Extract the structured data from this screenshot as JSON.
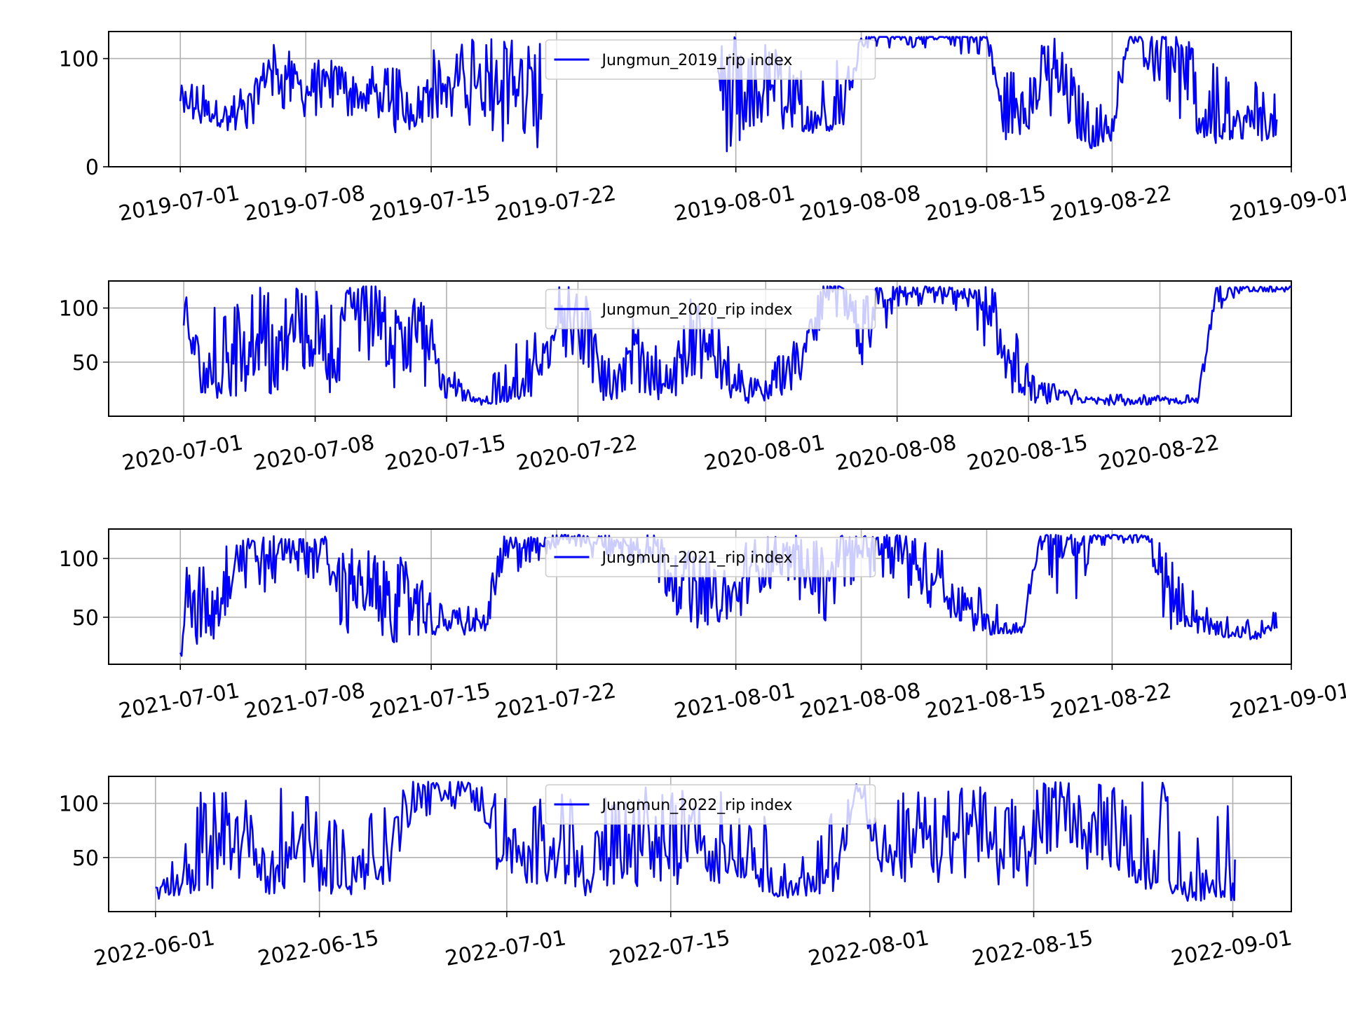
{
  "figure": {
    "background": "#ffffff"
  },
  "chart_data": [
    {
      "type": "line",
      "x_type": "date",
      "xlim": [
        "2019-06-27",
        "2019-09-01"
      ],
      "ylim": [
        0,
        125
      ],
      "yticks": [
        0,
        100
      ],
      "xticks": [
        "2019-07-01",
        "2019-07-08",
        "2019-07-15",
        "2019-07-22",
        "2019-08-01",
        "2019-08-08",
        "2019-08-15",
        "2019-08-22",
        "2019-09-01"
      ],
      "grid": true,
      "legend": "upper center",
      "series": [
        {
          "name": "Jungmun_2019_rip index",
          "color": "#0000ff",
          "x": [
            "2019-07-01",
            "2019-07-02",
            "2019-07-03",
            "2019-07-04",
            "2019-07-05",
            "2019-07-06",
            "2019-07-07",
            "2019-07-08",
            "2019-07-09",
            "2019-07-10",
            "2019-07-11",
            "2019-07-12",
            "2019-07-13",
            "2019-07-14",
            "2019-07-15",
            "2019-07-16",
            "2019-07-17",
            "2019-07-18",
            "2019-07-19",
            "2019-07-20",
            "2019-07-21",
            "2019-07-31",
            "2019-08-01",
            "2019-08-02",
            "2019-08-03",
            "2019-08-04",
            "2019-08-05",
            "2019-08-06",
            "2019-08-07",
            "2019-08-08",
            "2019-08-09",
            "2019-08-10",
            "2019-08-11",
            "2019-08-12",
            "2019-08-13",
            "2019-08-14",
            "2019-08-15",
            "2019-08-16",
            "2019-08-17",
            "2019-08-18",
            "2019-08-19",
            "2019-08-20",
            "2019-08-21",
            "2019-08-22",
            "2019-08-23",
            "2019-08-24",
            "2019-08-25",
            "2019-08-26",
            "2019-08-27",
            "2019-08-28",
            "2019-08-29",
            "2019-08-30",
            "2019-08-31"
          ],
          "y": [
            65,
            55,
            50,
            45,
            60,
            95,
            85,
            70,
            75,
            80,
            65,
            70,
            60,
            55,
            75,
            70,
            85,
            70,
            90,
            80,
            60,
            95,
            30,
            60,
            80,
            55,
            45,
            45,
            65,
            120,
            120,
            120,
            120,
            120,
            120,
            120,
            120,
            40,
            55,
            75,
            85,
            45,
            30,
            40,
            120,
            120,
            120,
            90,
            50,
            45,
            40,
            45,
            40
          ],
          "range_low": [
            45,
            40,
            30,
            30,
            35,
            60,
            50,
            40,
            45,
            50,
            40,
            45,
            30,
            35,
            45,
            40,
            40,
            30,
            20,
            15,
            15,
            5,
            10,
            30,
            40,
            30,
            30,
            30,
            35,
            110,
            110,
            110,
            110,
            110,
            110,
            100,
            100,
            25,
            30,
            40,
            50,
            25,
            15,
            20,
            100,
            90,
            60,
            40,
            20,
            20,
            20,
            20,
            25
          ],
          "range_high": [
            85,
            80,
            75,
            70,
            85,
            120,
            110,
            95,
            100,
            110,
            95,
            100,
            95,
            90,
            110,
            100,
            120,
            120,
            120,
            120,
            120,
            120,
            120,
            110,
            115,
            95,
            85,
            80,
            110,
            120,
            120,
            120,
            120,
            120,
            120,
            120,
            120,
            90,
            100,
            115,
            120,
            80,
            60,
            70,
            120,
            120,
            120,
            120,
            120,
            90,
            75,
            80,
            70
          ]
        }
      ]
    },
    {
      "type": "line",
      "x_type": "date",
      "xlim": [
        "2020-06-27",
        "2020-08-29"
      ],
      "ylim": [
        0,
        125
      ],
      "yticks": [
        50,
        100
      ],
      "xticks": [
        "2020-07-01",
        "2020-07-08",
        "2020-07-15",
        "2020-07-22",
        "2020-08-01",
        "2020-08-08",
        "2020-08-15",
        "2020-08-22"
      ],
      "grid": true,
      "legend": "upper center",
      "series": [
        {
          "name": "Jungmun_2020_rip index",
          "color": "#0000ff",
          "x": [
            "2020-07-01",
            "2020-07-02",
            "2020-07-03",
            "2020-07-04",
            "2020-07-05",
            "2020-07-06",
            "2020-07-07",
            "2020-07-08",
            "2020-07-09",
            "2020-07-10",
            "2020-07-11",
            "2020-07-12",
            "2020-07-13",
            "2020-07-14",
            "2020-07-15",
            "2020-07-16",
            "2020-07-17",
            "2020-07-18",
            "2020-07-19",
            "2020-07-20",
            "2020-07-21",
            "2020-07-22",
            "2020-07-23",
            "2020-07-24",
            "2020-07-25",
            "2020-07-26",
            "2020-07-27",
            "2020-07-28",
            "2020-07-29",
            "2020-07-30",
            "2020-07-31",
            "2020-08-01",
            "2020-08-02",
            "2020-08-03",
            "2020-08-04",
            "2020-08-05",
            "2020-08-06",
            "2020-08-07",
            "2020-08-08",
            "2020-08-09",
            "2020-08-10",
            "2020-08-11",
            "2020-08-12",
            "2020-08-13",
            "2020-08-14",
            "2020-08-15",
            "2020-08-16",
            "2020-08-17",
            "2020-08-18",
            "2020-08-19",
            "2020-08-20",
            "2020-08-21",
            "2020-08-22",
            "2020-08-23",
            "2020-08-24",
            "2020-08-25",
            "2020-08-26",
            "2020-08-27",
            "2020-08-28",
            "2020-08-29"
          ],
          "y": [
            90,
            40,
            35,
            60,
            85,
            50,
            95,
            80,
            60,
            105,
            110,
            70,
            95,
            65,
            30,
            20,
            15,
            18,
            30,
            45,
            100,
            90,
            50,
            30,
            60,
            40,
            35,
            70,
            60,
            40,
            25,
            20,
            40,
            55,
            115,
            115,
            65,
            110,
            115,
            115,
            115,
            115,
            110,
            90,
            50,
            25,
            20,
            18,
            15,
            15,
            15,
            15,
            15,
            15,
            15,
            110,
            118,
            118,
            118,
            118
          ],
          "range_low": [
            45,
            20,
            15,
            20,
            25,
            15,
            30,
            30,
            20,
            40,
            45,
            20,
            35,
            25,
            15,
            12,
            10,
            12,
            15,
            20,
            60,
            40,
            15,
            12,
            25,
            15,
            15,
            25,
            25,
            18,
            12,
            12,
            20,
            30,
            80,
            90,
            30,
            70,
            95,
            100,
            100,
            100,
            80,
            45,
            20,
            12,
            10,
            10,
            10,
            10,
            10,
            10,
            10,
            10,
            10,
            60,
            110,
            115,
            115,
            115
          ],
          "range_high": [
            120,
            110,
            95,
            110,
            120,
            110,
            120,
            120,
            115,
            120,
            120,
            120,
            120,
            110,
            60,
            25,
            30,
            50,
            75,
            90,
            120,
            120,
            100,
            55,
            95,
            70,
            60,
            110,
            100,
            65,
            40,
            35,
            65,
            80,
            120,
            120,
            110,
            120,
            120,
            120,
            120,
            120,
            120,
            120,
            95,
            45,
            30,
            30,
            20,
            20,
            20,
            20,
            20,
            20,
            20,
            120,
            120,
            120,
            120,
            120
          ]
        }
      ]
    },
    {
      "type": "line",
      "x_type": "date",
      "xlim": [
        "2021-06-27",
        "2021-09-01"
      ],
      "ylim": [
        10,
        125
      ],
      "yticks": [
        50,
        100
      ],
      "xticks": [
        "2021-07-01",
        "2021-07-08",
        "2021-07-15",
        "2021-07-22",
        "2021-08-01",
        "2021-08-08",
        "2021-08-15",
        "2021-08-22",
        "2021-09-01"
      ],
      "grid": true,
      "legend": "upper center",
      "series": [
        {
          "name": "Jungmun_2021_rip index",
          "color": "#0000ff",
          "x": [
            "2021-07-01",
            "2021-07-02",
            "2021-07-03",
            "2021-07-04",
            "2021-07-05",
            "2021-07-06",
            "2021-07-07",
            "2021-07-08",
            "2021-07-09",
            "2021-07-10",
            "2021-07-11",
            "2021-07-12",
            "2021-07-13",
            "2021-07-14",
            "2021-07-15",
            "2021-07-16",
            "2021-07-17",
            "2021-07-18",
            "2021-07-19",
            "2021-07-20",
            "2021-07-21",
            "2021-07-22",
            "2021-07-23",
            "2021-07-24",
            "2021-07-25",
            "2021-07-26",
            "2021-07-27",
            "2021-07-28",
            "2021-07-29",
            "2021-07-30",
            "2021-07-31",
            "2021-08-01",
            "2021-08-02",
            "2021-08-03",
            "2021-08-04",
            "2021-08-05",
            "2021-08-06",
            "2021-08-07",
            "2021-08-08",
            "2021-08-09",
            "2021-08-10",
            "2021-08-11",
            "2021-08-12",
            "2021-08-13",
            "2021-08-14",
            "2021-08-15",
            "2021-08-16",
            "2021-08-17",
            "2021-08-18",
            "2021-08-19",
            "2021-08-20",
            "2021-08-21",
            "2021-08-22",
            "2021-08-23",
            "2021-08-24",
            "2021-08-25",
            "2021-08-26",
            "2021-08-27",
            "2021-08-28",
            "2021-08-29",
            "2021-08-30",
            "2021-08-31"
          ],
          "y": [
            50,
            55,
            60,
            100,
            105,
            100,
            110,
            105,
            110,
            80,
            70,
            75,
            60,
            70,
            45,
            45,
            45,
            45,
            105,
            110,
            110,
            118,
            118,
            115,
            115,
            112,
            110,
            105,
            75,
            70,
            65,
            70,
            90,
            100,
            105,
            90,
            80,
            110,
            110,
            110,
            110,
            100,
            85,
            70,
            60,
            45,
            40,
            40,
            118,
            118,
            100,
            118,
            118,
            118,
            118,
            80,
            55,
            45,
            40,
            38,
            35,
            45
          ],
          "range_low": [
            15,
            20,
            30,
            70,
            70,
            70,
            90,
            80,
            85,
            40,
            25,
            30,
            25,
            25,
            35,
            35,
            35,
            38,
            70,
            90,
            95,
            110,
            110,
            100,
            100,
            95,
            95,
            70,
            45,
            40,
            45,
            45,
            60,
            75,
            80,
            50,
            45,
            75,
            75,
            85,
            75,
            60,
            50,
            45,
            40,
            35,
            35,
            35,
            110,
            60,
            60,
            110,
            112,
            112,
            112,
            40,
            40,
            35,
            32,
            32,
            30,
            35
          ],
          "range_high": [
            95,
            95,
            110,
            120,
            120,
            120,
            120,
            120,
            120,
            115,
            105,
            110,
            100,
            105,
            75,
            55,
            60,
            65,
            120,
            120,
            120,
            120,
            120,
            120,
            120,
            120,
            120,
            120,
            110,
            105,
            95,
            105,
            120,
            120,
            120,
            120,
            110,
            120,
            120,
            120,
            120,
            120,
            115,
            100,
            85,
            70,
            60,
            55,
            120,
            120,
            120,
            120,
            120,
            120,
            120,
            110,
            85,
            65,
            55,
            50,
            48,
            55
          ]
        }
      ]
    },
    {
      "type": "line",
      "x_type": "date",
      "xlim": [
        "2022-05-28",
        "2022-09-06"
      ],
      "ylim": [
        0,
        125
      ],
      "yticks": [
        50,
        100
      ],
      "xticks": [
        "2022-06-01",
        "2022-06-15",
        "2022-07-01",
        "2022-07-15",
        "2022-08-01",
        "2022-08-15",
        "2022-09-01"
      ],
      "grid": true,
      "legend": "upper center",
      "series": [
        {
          "name": "Jungmun_2022_rip index",
          "color": "#0000ff",
          "x": [
            "2022-06-01",
            "2022-06-03",
            "2022-06-05",
            "2022-06-07",
            "2022-06-09",
            "2022-06-11",
            "2022-06-13",
            "2022-06-15",
            "2022-06-17",
            "2022-06-19",
            "2022-06-21",
            "2022-06-23",
            "2022-06-25",
            "2022-06-27",
            "2022-06-29",
            "2022-07-01",
            "2022-07-03",
            "2022-07-05",
            "2022-07-07",
            "2022-07-09",
            "2022-07-11",
            "2022-07-13",
            "2022-07-15",
            "2022-07-17",
            "2022-07-19",
            "2022-07-21",
            "2022-07-23",
            "2022-07-25",
            "2022-07-27",
            "2022-07-29",
            "2022-07-31",
            "2022-08-02",
            "2022-08-04",
            "2022-08-06",
            "2022-08-08",
            "2022-08-10",
            "2022-08-12",
            "2022-08-14",
            "2022-08-16",
            "2022-08-18",
            "2022-08-20",
            "2022-08-22",
            "2022-08-24",
            "2022-08-26",
            "2022-08-28",
            "2022-08-30",
            "2022-09-01"
          ],
          "y": [
            20,
            25,
            30,
            80,
            70,
            30,
            70,
            45,
            40,
            40,
            60,
            115,
            110,
            115,
            100,
            60,
            45,
            70,
            40,
            50,
            40,
            80,
            45,
            90,
            40,
            70,
            35,
            20,
            25,
            30,
            118,
            60,
            45,
            70,
            60,
            80,
            50,
            55,
            85,
            110,
            70,
            95,
            50,
            40,
            25,
            30,
            20
          ],
          "range_low": [
            12,
            10,
            15,
            30,
            25,
            15,
            20,
            15,
            15,
            15,
            20,
            90,
            85,
            90,
            60,
            20,
            20,
            30,
            15,
            15,
            15,
            30,
            15,
            40,
            15,
            30,
            15,
            12,
            15,
            15,
            110,
            25,
            20,
            30,
            20,
            40,
            15,
            15,
            40,
            60,
            30,
            40,
            20,
            15,
            10,
            10,
            10
          ],
          "range_high": [
            40,
            50,
            120,
            120,
            110,
            120,
            120,
            95,
            85,
            90,
            110,
            120,
            120,
            120,
            120,
            110,
            110,
            120,
            100,
            110,
            100,
            120,
            110,
            120,
            110,
            120,
            90,
            40,
            60,
            100,
            120,
            120,
            110,
            120,
            120,
            120,
            110,
            110,
            120,
            120,
            120,
            120,
            120,
            120,
            80,
            70,
            120
          ]
        }
      ]
    }
  ]
}
